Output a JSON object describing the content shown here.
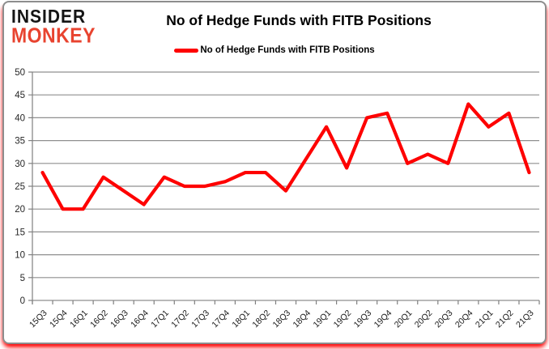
{
  "brand": {
    "line1": "INSIDER",
    "line2": "MONKEY"
  },
  "header": {
    "title": "No of Hedge Funds with FITB Positions"
  },
  "legend": {
    "label": "No of Hedge Funds with FITB Positions"
  },
  "colors": {
    "series": "#fe0000",
    "grid": "#8f8f8f",
    "axis": "#808080",
    "tick_text": "#262626",
    "brand_black": "#151515",
    "brand_red": "#e8432f",
    "border": "#8d8d8d",
    "glow": "#ff0000"
  },
  "chart_data": {
    "type": "line",
    "title": "No of Hedge Funds with FITB Positions",
    "categories": [
      "15Q3",
      "15Q4",
      "16Q1",
      "16Q2",
      "16Q3",
      "16Q4",
      "17Q1",
      "17Q2",
      "17Q3",
      "17Q4",
      "18Q1",
      "18Q2",
      "18Q3",
      "18Q4",
      "19Q1",
      "19Q2",
      "19Q3",
      "19Q4",
      "20Q1",
      "20Q2",
      "20Q3",
      "20Q4",
      "21Q1",
      "21Q2",
      "21Q3"
    ],
    "series": [
      {
        "name": "No of Hedge Funds with FITB Positions",
        "color": "#fe0000",
        "values": [
          28,
          20,
          20,
          27,
          24,
          21,
          27,
          25,
          25,
          26,
          28,
          28,
          24,
          31,
          38,
          29,
          40,
          41,
          30,
          32,
          30,
          43,
          38,
          41,
          28
        ]
      }
    ],
    "xlabel": "",
    "ylabel": "",
    "ylim": [
      0,
      50
    ],
    "ytick_step": 5,
    "grid": true,
    "legend_position": "top"
  }
}
